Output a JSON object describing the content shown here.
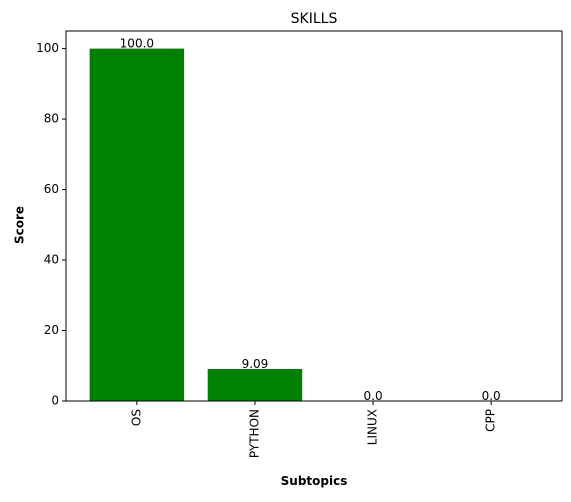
{
  "chart_data": {
    "type": "bar",
    "title": "SKILLS",
    "xlabel": "Subtopics",
    "ylabel": "Score",
    "categories": [
      "OS",
      "PYTHON",
      "LINUX",
      "CPP"
    ],
    "values": [
      100.0,
      9.09,
      0.0,
      0.0
    ],
    "value_labels": [
      "100.0",
      "9.09",
      "0.0",
      "0.0"
    ],
    "ylim": [
      0,
      105
    ],
    "yticks": [
      0,
      20,
      40,
      60,
      80,
      100
    ],
    "bar_color": "#008000",
    "grid": false,
    "x_tick_rotation": "vertical"
  }
}
